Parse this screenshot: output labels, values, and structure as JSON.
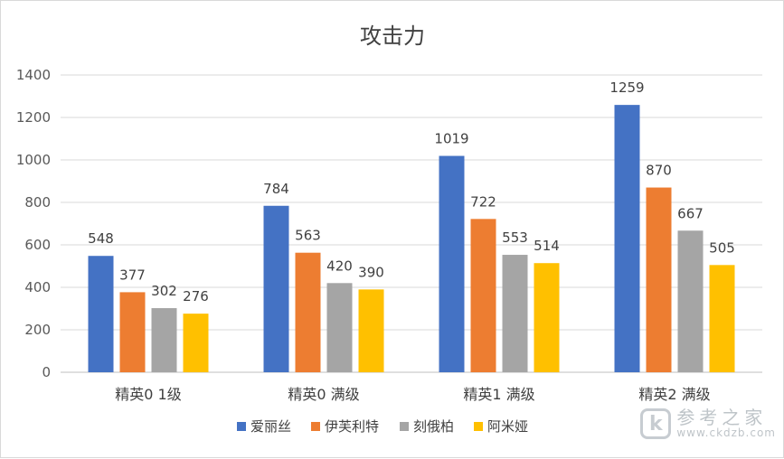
{
  "chart_data": {
    "type": "bar",
    "title": "攻击力",
    "categories": [
      "精英0 1级",
      "精英0 满级",
      "精英1 满级",
      "精英2 满级"
    ],
    "series": [
      {
        "name": "爱丽丝",
        "color": "#4472c4",
        "values": [
          548,
          784,
          1019,
          1259
        ]
      },
      {
        "name": "伊芙利特",
        "color": "#ed7d31",
        "values": [
          377,
          563,
          722,
          870
        ]
      },
      {
        "name": "刻俄柏",
        "color": "#a5a5a5",
        "values": [
          302,
          420,
          553,
          667
        ]
      },
      {
        "name": "阿米娅",
        "color": "#ffc000",
        "values": [
          276,
          390,
          514,
          505
        ]
      }
    ],
    "ylim": [
      0,
      1400
    ],
    "yticks": [
      0,
      200,
      400,
      600,
      800,
      1000,
      1200,
      1400
    ],
    "grid": true,
    "legend": "bottom"
  },
  "watermark": {
    "logo_glyph": "k",
    "name": "参考之家",
    "url": "www.ckdzb.com"
  }
}
